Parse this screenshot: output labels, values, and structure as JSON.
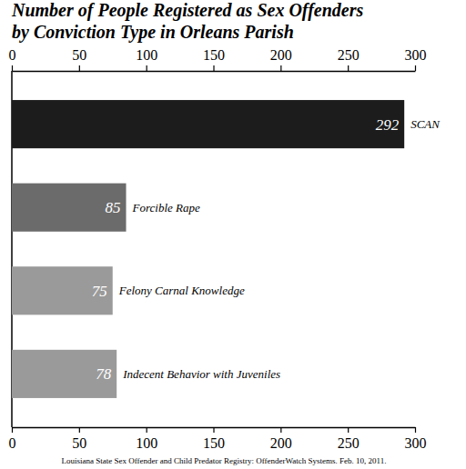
{
  "chart_data": {
    "type": "bar",
    "orientation": "horizontal",
    "title": "Number of People Registered as Sex Offenders by Conviction Type in Orleans Parish",
    "categories": [
      "SCAN",
      "Forcible Rape",
      "Felony Carnal Knowledge",
      "Indecent Behavior with Juveniles"
    ],
    "values": [
      292,
      85,
      75,
      78
    ],
    "colors": [
      "#1c1c1c",
      "#6b6b6b",
      "#9a9a9a",
      "#9a9a9a"
    ],
    "xlim": [
      0,
      300
    ],
    "xticks": [
      0,
      50,
      100,
      150,
      200,
      250,
      300
    ],
    "data_labels": true,
    "grid": false,
    "annotations": [
      "Louisiana State Sex Offender and Child Predator Registry: OffenderWatch Systems. Feb. 10, 2011."
    ]
  }
}
